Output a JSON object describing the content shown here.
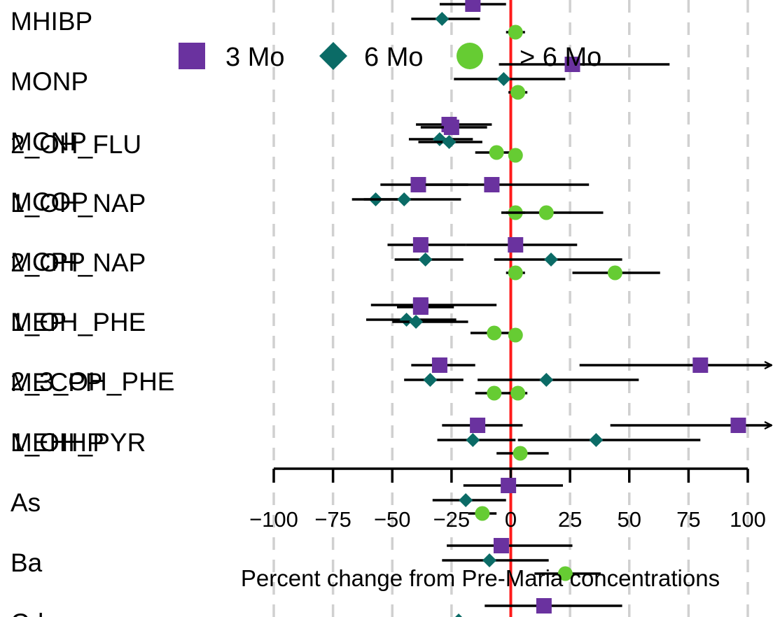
{
  "chart_data": {
    "type": "forest",
    "title": "",
    "xlabel": "Percent change from Pre-Maria concentrations",
    "ylabel": "",
    "xlim": [
      -100,
      100
    ],
    "xticks": [
      "−100",
      "−75",
      "−50",
      "−25",
      "0",
      "25",
      "50",
      "75",
      "100"
    ],
    "reference_line": 0,
    "grid": "dashed vertical",
    "legend_position": "top",
    "series": [
      {
        "name": "3 Mo",
        "color": "#6a329f",
        "marker": "square"
      },
      {
        "name": "6 Mo",
        "color": "#0b6b66",
        "marker": "diamond"
      },
      {
        "name": "> 6 Mo",
        "color": "#66cc33",
        "marker": "circle"
      }
    ],
    "row_labels_left": [
      "MHIBP",
      "MONP",
      "MCNP",
      "MCOP",
      "MCPP",
      "MEP",
      "MECPP",
      "MEHHP",
      "As",
      "Ba",
      "Cd"
    ],
    "row_labels_overlaid": [
      "2_OH_FLU",
      "1_OH_NAP",
      "2_OH_NAP",
      "1_OH_PHE",
      "2_3_OH_PHE",
      "1_OH_PYR"
    ],
    "estimates": [
      {
        "label": "MHIBP",
        "series": "3 Mo",
        "value": -16,
        "lo": -30,
        "hi": -2
      },
      {
        "label": "MHIBP",
        "series": "6 Mo",
        "value": -29,
        "lo": -42,
        "hi": -13
      },
      {
        "label": "MHIBP",
        "series": "> 6 Mo",
        "value": 2,
        "lo": -2,
        "hi": 6
      },
      {
        "label": "MONP",
        "series": "3 Mo",
        "value": 26,
        "lo": -5,
        "hi": 67
      },
      {
        "label": "MONP",
        "series": "6 Mo",
        "value": -3,
        "lo": -24,
        "hi": 23
      },
      {
        "label": "MONP",
        "series": "> 6 Mo",
        "value": 3,
        "lo": -1,
        "hi": 7
      },
      {
        "label": "MCNP",
        "series": "3 Mo",
        "value": -26,
        "lo": -40,
        "hi": -8
      },
      {
        "label": "MCNP",
        "series": "3 Mo",
        "value": -25,
        "lo": -38,
        "hi": -10
      },
      {
        "label": "MCNP",
        "series": "6 Mo",
        "value": -30,
        "lo": -43,
        "hi": -16
      },
      {
        "label": "MCNP",
        "series": "6 Mo",
        "value": -26,
        "lo": -39,
        "hi": -12
      },
      {
        "label": "MCNP",
        "series": "> 6 Mo",
        "value": -6,
        "lo": -15,
        "hi": 4
      },
      {
        "label": "MCNP",
        "series": "> 6 Mo",
        "value": 2,
        "lo": -1,
        "hi": 5
      },
      {
        "label": "MCOP",
        "series": "3 Mo",
        "value": -39,
        "lo": -55,
        "hi": -18
      },
      {
        "label": "MCOP",
        "series": "3 Mo",
        "value": -8,
        "lo": -36,
        "hi": 33
      },
      {
        "label": "MCOP",
        "series": "6 Mo",
        "value": -57,
        "lo": -67,
        "hi": -44
      },
      {
        "label": "MCOP",
        "series": "6 Mo",
        "value": -45,
        "lo": -62,
        "hi": -21
      },
      {
        "label": "MCOP",
        "series": "> 6 Mo",
        "value": 2,
        "lo": -2,
        "hi": 6
      },
      {
        "label": "MCOP",
        "series": "> 6 Mo",
        "value": 15,
        "lo": -4,
        "hi": 39
      },
      {
        "label": "MCPP",
        "series": "3 Mo",
        "value": -38,
        "lo": -52,
        "hi": -19
      },
      {
        "label": "MCPP",
        "series": "3 Mo",
        "value": 2,
        "lo": -19,
        "hi": 28
      },
      {
        "label": "MCPP",
        "series": "6 Mo",
        "value": -36,
        "lo": -49,
        "hi": -20
      },
      {
        "label": "MCPP",
        "series": "6 Mo",
        "value": 17,
        "lo": -7,
        "hi": 47
      },
      {
        "label": "MCPP",
        "series": "> 6 Mo",
        "value": 2,
        "lo": -2,
        "hi": 6
      },
      {
        "label": "MCPP",
        "series": "> 6 Mo",
        "value": 44,
        "lo": 26,
        "hi": 63
      },
      {
        "label": "MEP",
        "series": "3 Mo",
        "value": -38,
        "lo": -59,
        "hi": -6
      },
      {
        "label": "MEP",
        "series": "3 Mo",
        "value": -38,
        "lo": -48,
        "hi": -24
      },
      {
        "label": "MEP",
        "series": "6 Mo",
        "value": -44,
        "lo": -61,
        "hi": -23
      },
      {
        "label": "MEP",
        "series": "6 Mo",
        "value": -40,
        "lo": -50,
        "hi": -18
      },
      {
        "label": "MEP",
        "series": "> 6 Mo",
        "value": -7,
        "lo": -17,
        "hi": 4
      },
      {
        "label": "MEP",
        "series": "> 6 Mo",
        "value": 2,
        "lo": -1,
        "hi": 5
      },
      {
        "label": "MECPP",
        "series": "3 Mo",
        "value": -30,
        "lo": -42,
        "hi": -15
      },
      {
        "label": "MECPP",
        "series": "3 Mo",
        "value": 80,
        "lo": 29,
        "hi": 100
      },
      {
        "label": "MECPP",
        "series": "6 Mo",
        "value": -34,
        "lo": -45,
        "hi": -20
      },
      {
        "label": "MECPP",
        "series": "6 Mo",
        "value": 15,
        "lo": -14,
        "hi": 54
      },
      {
        "label": "MECPP",
        "series": "> 6 Mo",
        "value": -7,
        "lo": -15,
        "hi": 2
      },
      {
        "label": "MECPP",
        "series": "> 6 Mo",
        "value": 3,
        "lo": -1,
        "hi": 7
      },
      {
        "label": "MEHHP",
        "series": "3 Mo",
        "value": -14,
        "lo": -29,
        "hi": 5
      },
      {
        "label": "MEHHP",
        "series": "3 Mo",
        "value": 96,
        "lo": 42,
        "hi": 100
      },
      {
        "label": "MEHHP",
        "series": "6 Mo",
        "value": -16,
        "lo": -31,
        "hi": 2
      },
      {
        "label": "MEHHP",
        "series": "6 Mo",
        "value": 36,
        "lo": 3,
        "hi": 80
      },
      {
        "label": "MEHHP",
        "series": "> 6 Mo",
        "value": 4,
        "lo": -6,
        "hi": 16
      },
      {
        "label": "As",
        "series": "3 Mo",
        "value": -1,
        "lo": -20,
        "hi": 22
      },
      {
        "label": "As",
        "series": "6 Mo",
        "value": -19,
        "lo": -33,
        "hi": -2
      },
      {
        "label": "As",
        "series": "> 6 Mo",
        "value": -12,
        "lo": -18,
        "hi": -6
      },
      {
        "label": "Ba",
        "series": "3 Mo",
        "value": -4,
        "lo": -27,
        "hi": 26
      },
      {
        "label": "Ba",
        "series": "6 Mo",
        "value": -9,
        "lo": -29,
        "hi": 16
      },
      {
        "label": "Ba",
        "series": "> 6 Mo",
        "value": 23,
        "lo": 10,
        "hi": 38
      },
      {
        "label": "Cd",
        "series": "3 Mo",
        "value": 14,
        "lo": -11,
        "hi": 47
      },
      {
        "label": "Cd",
        "series": "6 Mo",
        "value": -22,
        "lo": -36,
        "hi": -6
      }
    ]
  }
}
